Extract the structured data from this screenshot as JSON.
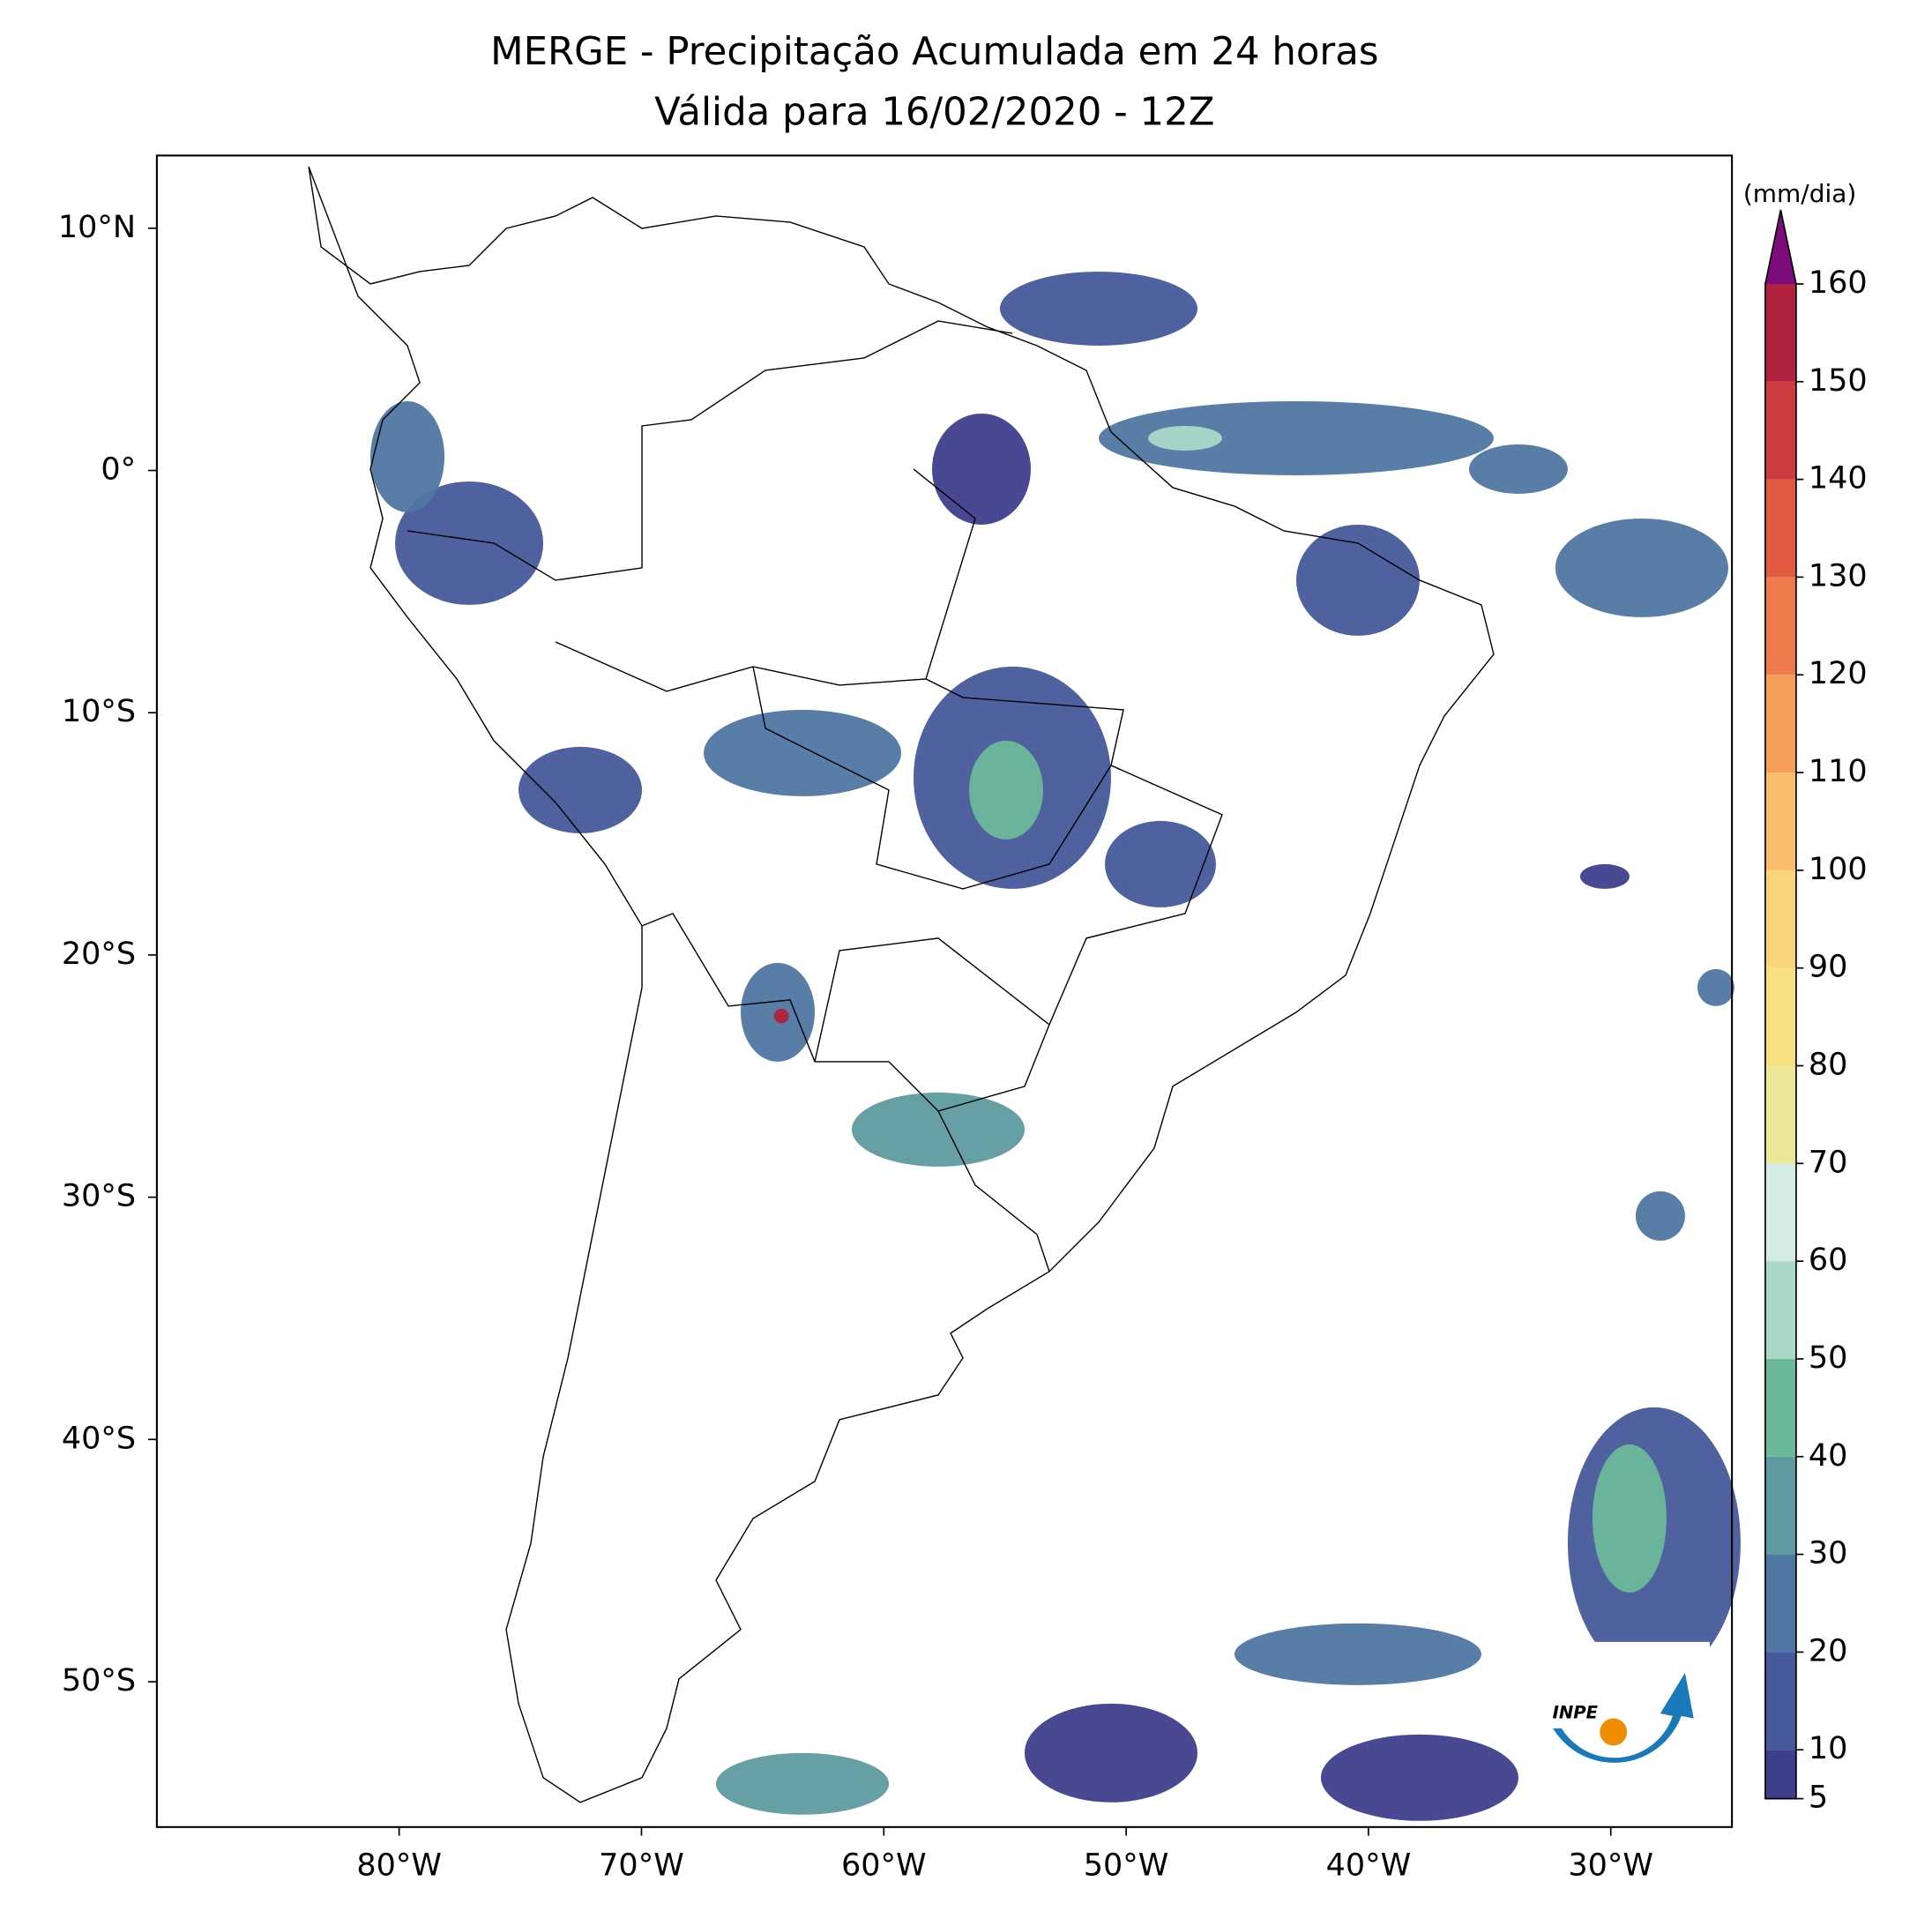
{
  "chart_data": {
    "type": "map",
    "title": "MERGE - Precipitação Acumulada em 24 horas",
    "subtitle": "Válida para 16/02/2020 - 12Z",
    "xlim": [
      -90,
      -25
    ],
    "ylim": [
      -56,
      13
    ],
    "xticks": [
      {
        "value": -80,
        "label": "80°W"
      },
      {
        "value": -70,
        "label": "70°W"
      },
      {
        "value": -60,
        "label": "60°W"
      },
      {
        "value": -50,
        "label": "50°W"
      },
      {
        "value": -40,
        "label": "40°W"
      },
      {
        "value": -30,
        "label": "30°W"
      }
    ],
    "yticks": [
      {
        "value": 10,
        "label": "10°N"
      },
      {
        "value": 0,
        "label": "0°"
      },
      {
        "value": -10,
        "label": "10°S"
      },
      {
        "value": -20,
        "label": "20°S"
      },
      {
        "value": -30,
        "label": "30°S"
      },
      {
        "value": -40,
        "label": "40°S"
      },
      {
        "value": -50,
        "label": "50°S"
      }
    ],
    "colorbar": {
      "label": "(mm/dia)",
      "lim": [
        5,
        160
      ],
      "ticks": [
        5,
        10,
        20,
        30,
        40,
        50,
        60,
        70,
        80,
        90,
        100,
        110,
        120,
        130,
        140,
        150,
        160
      ],
      "levels": [
        5,
        10,
        20,
        30,
        40,
        50,
        60,
        70,
        80,
        90,
        100,
        110,
        120,
        130,
        140,
        150,
        160
      ],
      "colors": [
        "#3e3f8c",
        "#46589a",
        "#4f77a3",
        "#5e9a9f",
        "#6cb89b",
        "#a9d8c8",
        "#d4ebe4",
        "#ece898",
        "#f6e082",
        "#fbd57a",
        "#f9bd6d",
        "#f59d5b",
        "#ef7b4c",
        "#e35a43",
        "#cf3c3f",
        "#b0223f"
      ],
      "extend_color": "#7c0c7c"
    },
    "logo": "INPE"
  }
}
